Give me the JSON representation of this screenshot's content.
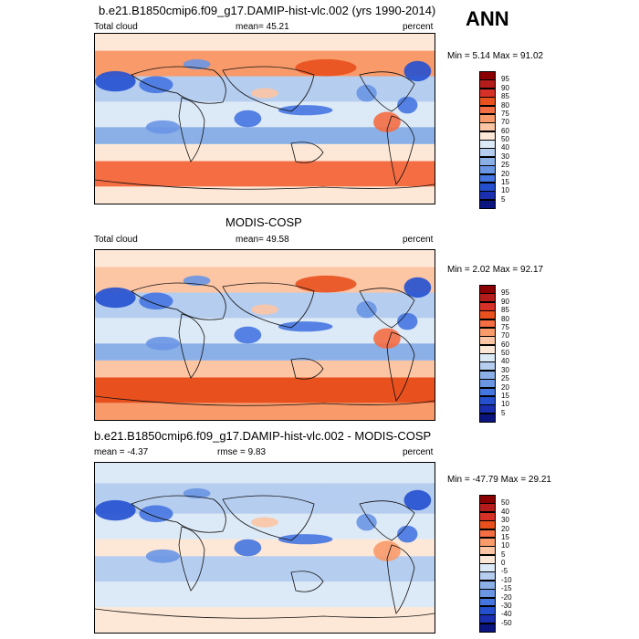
{
  "season_label": "ANN",
  "panels": [
    {
      "title": "b.e21.B1850cmip6.f09_g17.DAMIP-hist-vlc.002 (yrs 1990-2014)",
      "left_label": "Total cloud",
      "center_label": "mean=  45.21",
      "right_label": "percent",
      "minmax": "Min =   5.14 Max =  91.02",
      "colorbar_levels": [
        "95",
        "90",
        "85",
        "80",
        "75",
        "70",
        "60",
        "50",
        "40",
        "30",
        "25",
        "20",
        "15",
        "10",
        "5"
      ],
      "colorbar_colors": [
        "#8b0000",
        "#b71c1c",
        "#d73027",
        "#e8501e",
        "#f46d43",
        "#f89a6a",
        "#fcc5a4",
        "#fde8d8",
        "#dce9f7",
        "#b5cdef",
        "#8bb0e8",
        "#6a96e4",
        "#4575e0",
        "#2450d0",
        "#1a2fb0",
        "#0a1580"
      ],
      "map_tone": "high"
    },
    {
      "title": "MODIS-COSP",
      "left_label": "Total cloud",
      "center_label": "mean=  49.58",
      "right_label": "percent",
      "minmax": "Min =   2.02 Max =  92.17",
      "colorbar_levels": [
        "95",
        "90",
        "85",
        "80",
        "75",
        "70",
        "60",
        "50",
        "40",
        "30",
        "25",
        "20",
        "15",
        "10",
        "5"
      ],
      "colorbar_colors": [
        "#8b0000",
        "#b71c1c",
        "#d73027",
        "#e8501e",
        "#f46d43",
        "#f89a6a",
        "#fcc5a4",
        "#fde8d8",
        "#dce9f7",
        "#b5cdef",
        "#8bb0e8",
        "#6a96e4",
        "#4575e0",
        "#2450d0",
        "#1a2fb0",
        "#0a1580"
      ],
      "map_tone": "high"
    },
    {
      "title": "b.e21.B1850cmip6.f09_g17.DAMIP-hist-vlc.002 - MODIS-COSP",
      "left_label": "mean =  -4.37",
      "center_label": "rmse =   9.83",
      "right_label": "percent",
      "minmax": "Min = -47.79 Max =  29.21",
      "colorbar_levels": [
        "50",
        "40",
        "30",
        "20",
        "15",
        "10",
        "5",
        "0",
        "-5",
        "-10",
        "-15",
        "-20",
        "-30",
        "-40",
        "-50"
      ],
      "colorbar_colors": [
        "#8b0000",
        "#b71c1c",
        "#d73027",
        "#e8501e",
        "#f46d43",
        "#f89a6a",
        "#fcc5a4",
        "#fde8d8",
        "#dce9f7",
        "#b5cdef",
        "#8bb0e8",
        "#6a96e4",
        "#4575e0",
        "#2450d0",
        "#1a2fb0",
        "#0a1580"
      ],
      "map_tone": "diff"
    }
  ],
  "chart_data": [
    {
      "type": "heatmap",
      "title": "b.e21.B1850cmip6.f09_g17.DAMIP-hist-vlc.002 (yrs 1990-2014)",
      "variable": "Total cloud",
      "units": "percent",
      "mean": 45.21,
      "min": 5.14,
      "max": 91.02,
      "levels": [
        5,
        10,
        15,
        20,
        25,
        30,
        40,
        50,
        60,
        70,
        75,
        80,
        85,
        90,
        95
      ]
    },
    {
      "type": "heatmap",
      "title": "MODIS-COSP",
      "variable": "Total cloud",
      "units": "percent",
      "mean": 49.58,
      "min": 2.02,
      "max": 92.17,
      "levels": [
        5,
        10,
        15,
        20,
        25,
        30,
        40,
        50,
        60,
        70,
        75,
        80,
        85,
        90,
        95
      ]
    },
    {
      "type": "heatmap",
      "title": "b.e21.B1850cmip6.f09_g17.DAMIP-hist-vlc.002 - MODIS-COSP",
      "units": "percent",
      "mean": -4.37,
      "rmse": 9.83,
      "min": -47.79,
      "max": 29.21,
      "levels": [
        -50,
        -40,
        -30,
        -20,
        -15,
        -10,
        -5,
        0,
        5,
        10,
        15,
        20,
        30,
        40,
        50
      ]
    }
  ]
}
